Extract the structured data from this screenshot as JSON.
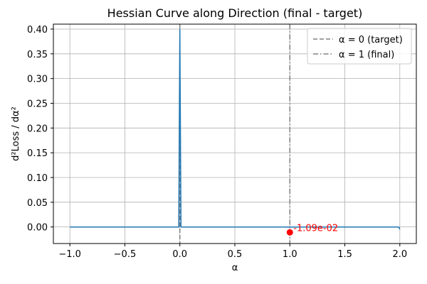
{
  "chart_data": {
    "type": "line",
    "title": "Hessian Curve along Direction (final - target)",
    "xlabel": "α",
    "ylabel": "d²Loss / dα²",
    "xlim": [
      -1.15,
      2.15
    ],
    "ylim": [
      -0.0335,
      0.41
    ],
    "xticks": [
      -1.0,
      -0.5,
      0.0,
      0.5,
      1.0,
      1.5,
      2.0
    ],
    "xtick_labels": [
      "−1.0",
      "−0.5",
      "0.0",
      "0.5",
      "1.0",
      "1.5",
      "2.0"
    ],
    "yticks": [
      0.0,
      0.05,
      0.1,
      0.15,
      0.2,
      0.25,
      0.3,
      0.35,
      0.4
    ],
    "ytick_labels": [
      "0.00",
      "0.05",
      "0.10",
      "0.15",
      "0.20",
      "0.25",
      "0.30",
      "0.35",
      "0.40"
    ],
    "grid": true,
    "series": [
      {
        "color": "#1f77b4",
        "x": [
          -1.0,
          -0.01,
          0.0,
          0.01,
          1.99,
          2.0
        ],
        "y": [
          0.0,
          0.0,
          0.4,
          0.0,
          0.0,
          -0.005
        ]
      }
    ],
    "vlines": [
      {
        "x": 0.0,
        "style": "dashed",
        "color": "#808080",
        "label": "α = 0 (target)"
      },
      {
        "x": 1.0,
        "style": "dashdot",
        "color": "#808080",
        "label": "α = 1 (final)"
      }
    ],
    "marker": {
      "x": 1.0,
      "y": -0.0109,
      "color": "#ff0000"
    },
    "annotation": {
      "text": "-1.09e-02",
      "x": 1.0,
      "y": -0.0109,
      "color": "#ff0000"
    },
    "legend_position": "top-right"
  }
}
